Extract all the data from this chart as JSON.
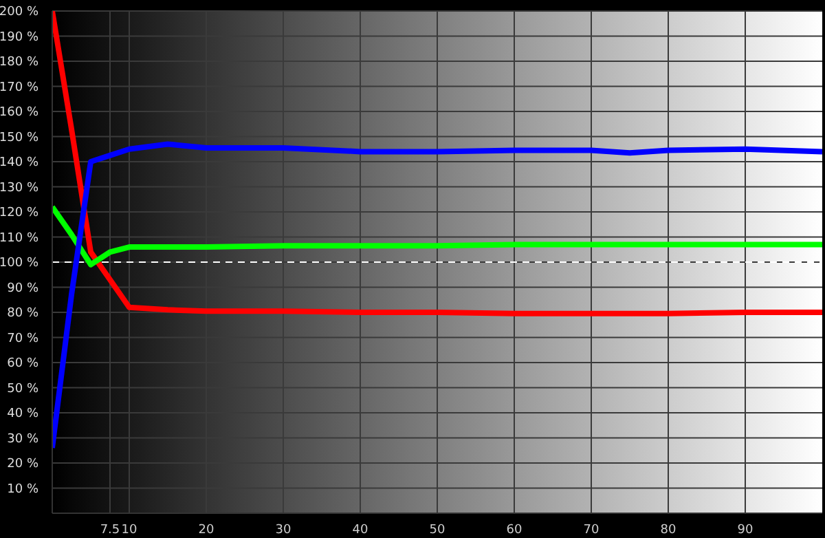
{
  "chart_data": {
    "type": "line",
    "x": [
      0,
      2.5,
      5,
      7.5,
      10,
      15,
      20,
      30,
      40,
      50,
      60,
      70,
      75,
      80,
      90,
      100
    ],
    "series": [
      {
        "color": "#ff0000",
        "values": [
          200,
          153,
          104,
          93,
          82,
          81,
          80.5,
          80.5,
          80,
          80,
          79.5,
          79.5,
          79.5,
          79.5,
          80,
          80
        ]
      },
      {
        "color": "#00ff00",
        "values": [
          122,
          111,
          99,
          104,
          106,
          106,
          106,
          106.5,
          106.5,
          106.5,
          107,
          107,
          107,
          107,
          107,
          107
        ]
      },
      {
        "color": "#0000ff",
        "values": [
          26,
          87,
          140,
          142.5,
          145,
          147,
          145.5,
          145.5,
          144,
          144,
          144.5,
          144.5,
          143.5,
          144.5,
          145,
          144
        ]
      }
    ],
    "xlim": [
      0,
      100
    ],
    "xticks": [
      7.5,
      10,
      20,
      30,
      40,
      50,
      60,
      70,
      80,
      90
    ],
    "ylim": [
      0,
      200
    ],
    "yticks": [
      {
        "value": 10,
        "label": "10 %"
      },
      {
        "value": 20,
        "label": "20 %"
      },
      {
        "value": 30,
        "label": "30 %"
      },
      {
        "value": 40,
        "label": "40 %"
      },
      {
        "value": 50,
        "label": "50 %"
      },
      {
        "value": 60,
        "label": "60 %"
      },
      {
        "value": 70,
        "label": "70 %"
      },
      {
        "value": 80,
        "label": "80 %"
      },
      {
        "value": 90,
        "label": "90 %"
      },
      {
        "value": 100,
        "label": "100 %"
      },
      {
        "value": 110,
        "label": "110 %"
      },
      {
        "value": 120,
        "label": "120 %"
      },
      {
        "value": 130,
        "label": "130 %"
      },
      {
        "value": 140,
        "label": "140 %"
      },
      {
        "value": 150,
        "label": "150 %"
      },
      {
        "value": 160,
        "label": "160 %"
      },
      {
        "value": 170,
        "label": "170 %"
      },
      {
        "value": 180,
        "label": "180 %"
      },
      {
        "value": 190,
        "label": "190 %"
      },
      {
        "value": 200,
        "label": "200 %"
      }
    ],
    "grid": true,
    "legend": false,
    "marker": "none",
    "line_style": "solid",
    "ref_lines": [
      {
        "axis": "y",
        "value": 100,
        "color": "#ffffff",
        "line_style": "dashed"
      }
    ]
  }
}
